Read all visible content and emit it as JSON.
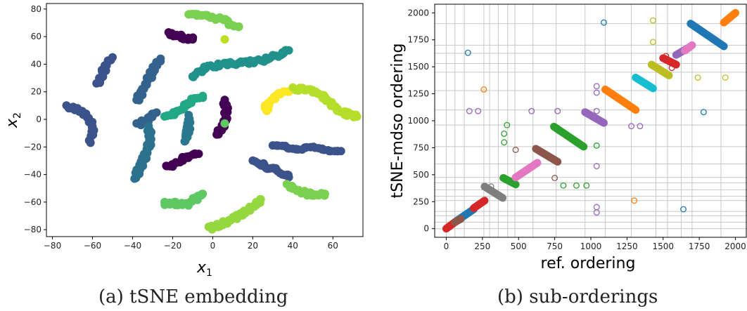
{
  "chart_data": [
    {
      "type": "scatter",
      "caption": "(a) tSNE embedding",
      "xlabel": "x",
      "xlabel_sub": "1",
      "ylabel": "x",
      "ylabel_sub": "2",
      "xlim": [
        -83,
        75
      ],
      "ylim": [
        -85,
        84
      ],
      "xticks": [
        -80,
        -60,
        -40,
        -20,
        0,
        20,
        40,
        60
      ],
      "yticks": [
        -80,
        -60,
        -40,
        -20,
        0,
        20,
        40,
        60,
        80
      ],
      "grid": false,
      "colormap": "viridis",
      "clusters": [
        {
          "points": [
            [
              -73,
              9
            ],
            [
              -68,
              7
            ],
            [
              -64,
              3
            ],
            [
              -61,
              -3
            ],
            [
              -60,
              -9
            ],
            [
              -61,
              -17
            ]
          ],
          "color": "#3b528b"
        },
        {
          "points": [
            [
              -58,
              25
            ],
            [
              -56,
              31
            ],
            [
              -54,
              36
            ],
            [
              -52,
              41
            ],
            [
              -50,
              45
            ]
          ],
          "color": "#3b528b"
        },
        {
          "points": [
            [
              -38,
              -4
            ],
            [
              -33,
              -1
            ],
            [
              -30,
              2
            ],
            [
              -28,
              5
            ]
          ],
          "color": "#33638d"
        },
        {
          "points": [
            [
              -38,
              13
            ],
            [
              -35,
              21
            ],
            [
              -32,
              29
            ],
            [
              -29,
              38
            ],
            [
              -26,
              44
            ]
          ],
          "color": "#33638d"
        },
        {
          "points": [
            [
              -22,
              62
            ],
            [
              -18,
              61
            ],
            [
              -14,
              59
            ],
            [
              -10,
              58
            ]
          ],
          "color": "#440154"
        },
        {
          "points": [
            [
              -32,
              -6
            ],
            [
              -31,
              -15
            ],
            [
              -33,
              -24
            ],
            [
              -36,
              -34
            ],
            [
              -39,
              -43
            ]
          ],
          "color": "#2c728e"
        },
        {
          "points": [
            [
              -24,
              1
            ],
            [
              -19,
              4
            ],
            [
              -14,
              9
            ],
            [
              -10,
              14
            ],
            [
              -5,
              17
            ]
          ],
          "color": "#22a884"
        },
        {
          "points": [
            [
              -12,
              2
            ],
            [
              -12,
              -6
            ],
            [
              -13,
              -12
            ],
            [
              -14,
              -16
            ]
          ],
          "color": "#2a788e"
        },
        {
          "points": [
            [
              -12,
              75
            ],
            [
              -7,
              76
            ],
            [
              -2,
              75
            ],
            [
              3,
              73
            ],
            [
              8,
              70
            ],
            [
              13,
              67
            ]
          ],
          "color": "#7ad151"
        },
        {
          "points": [
            [
              -24,
              -61
            ],
            [
              -18,
              -61
            ],
            [
              -13,
              -62
            ],
            [
              -9,
              -58
            ],
            [
              -5,
              -54
            ]
          ],
          "color": "#5ec962"
        },
        {
          "points": [
            [
              -23,
              -35
            ],
            [
              -18,
              -31
            ],
            [
              -12,
              -27
            ],
            [
              -7,
              -25
            ]
          ],
          "color": "#440154"
        },
        {
          "points": [
            [
              6,
              13
            ],
            [
              7,
              6
            ],
            [
              6,
              -1
            ],
            [
              5,
              -6
            ],
            [
              2,
              -11
            ]
          ],
          "color": "#440154"
        },
        {
          "points": [
            [
              -10,
              30
            ],
            [
              -5,
              37
            ],
            [
              5,
              40
            ],
            [
              15,
              41
            ],
            [
              22,
              42
            ],
            [
              30,
              45
            ],
            [
              38,
              50
            ]
          ],
          "color": "#21918c"
        },
        {
          "points": [
            [
              6,
              -3
            ]
          ],
          "color": "#5ec962"
        },
        {
          "points": [
            [
              6,
              58
            ]
          ],
          "color": "#bddf26"
        },
        {
          "points": [
            [
              20,
              -31
            ],
            [
              25,
              -33
            ],
            [
              32,
              -37
            ],
            [
              38,
              -42
            ]
          ],
          "color": "#3b528b"
        },
        {
          "points": [
            [
              37,
              -48
            ],
            [
              42,
              -51
            ],
            [
              47,
              -54
            ],
            [
              52,
              -55
            ],
            [
              56,
              -54
            ]
          ],
          "color": "#7ad151"
        },
        {
          "points": [
            [
              30,
              -20
            ],
            [
              38,
              -20
            ],
            [
              45,
              -21
            ],
            [
              52,
              -21
            ],
            [
              58,
              -22
            ],
            [
              64,
              -23
            ]
          ],
          "color": "#3b528b"
        },
        {
          "points": [
            [
              -2,
              -79
            ],
            [
              3,
              -77
            ],
            [
              9,
              -73
            ],
            [
              15,
              -68
            ],
            [
              20,
              -64
            ],
            [
              24,
              -58
            ]
          ],
          "color": "#95d840"
        },
        {
          "points": [
            [
              27,
              5
            ],
            [
              27,
              10
            ],
            [
              29,
              14
            ],
            [
              33,
              18
            ],
            [
              38,
              20
            ]
          ],
          "color": "#fde725"
        },
        {
          "points": [
            [
              40,
              22
            ],
            [
              47,
              22
            ],
            [
              54,
              18
            ],
            [
              58,
              13
            ],
            [
              62,
              7
            ],
            [
              67,
              4
            ],
            [
              72,
              2
            ]
          ],
          "color": "#b5de2b"
        }
      ]
    },
    {
      "type": "scatter",
      "caption": "(b) sub-orderings",
      "xlabel": "ref. ordering",
      "ylabel": "tSNE-mdso ordering",
      "xlim": [
        -80,
        2080
      ],
      "ylim": [
        -80,
        2080
      ],
      "xticks": [
        0,
        250,
        500,
        750,
        1000,
        1250,
        1500,
        1750,
        2000
      ],
      "yticks": [
        0,
        250,
        500,
        750,
        1000,
        1250,
        1500,
        1750,
        2000
      ],
      "grid": true,
      "gridlines_x": [
        0,
        60,
        125,
        260,
        300,
        360,
        425,
        475,
        600,
        760,
        960,
        1100,
        1280,
        1450,
        1530,
        1625,
        1700,
        1900
      ],
      "gridlines_y": [
        0,
        60,
        120,
        160,
        260,
        300,
        360,
        425,
        475,
        600,
        760,
        960,
        1100,
        1280,
        1450,
        1530,
        1625,
        1700,
        1900
      ],
      "segments": [
        {
          "x": [
            0,
            75
          ],
          "y": [
            0,
            75
          ],
          "color": "#d62728"
        },
        {
          "x": [
            75,
            190
          ],
          "y": [
            75,
            180
          ],
          "color": "#1f77b4"
        },
        {
          "x": [
            190,
            265
          ],
          "y": [
            190,
            260
          ],
          "color": "#d62728"
        },
        {
          "x": [
            60,
            100
          ],
          "y": [
            60,
            90
          ],
          "color": "#8c564b"
        },
        {
          "x": [
            265,
            390
          ],
          "y": [
            390,
            285
          ],
          "color": "#7f7f7f"
        },
        {
          "x": [
            395,
            480
          ],
          "y": [
            470,
            410
          ],
          "color": "#2ca02c"
        },
        {
          "x": [
            480,
            630
          ],
          "y": [
            475,
            610
          ],
          "color": "#e377c2"
        },
        {
          "x": [
            620,
            770
          ],
          "y": [
            740,
            620
          ],
          "color": "#8c564b"
        },
        {
          "x": [
            745,
            950
          ],
          "y": [
            945,
            760
          ],
          "color": "#2ca02c"
        },
        {
          "x": [
            960,
            1090
          ],
          "y": [
            1080,
            980
          ],
          "color": "#9467bd"
        },
        {
          "x": [
            1100,
            1310
          ],
          "y": [
            1290,
            1100
          ],
          "color": "#ff7f0e"
        },
        {
          "x": [
            1310,
            1430
          ],
          "y": [
            1400,
            1300
          ],
          "color": "#17becf"
        },
        {
          "x": [
            1420,
            1540
          ],
          "y": [
            1520,
            1420
          ],
          "color": "#bcbd22"
        },
        {
          "x": [
            1500,
            1590
          ],
          "y": [
            1580,
            1520
          ],
          "color": "#d62728"
        },
        {
          "x": [
            1590,
            1680
          ],
          "y": [
            1610,
            1680
          ],
          "color": "#9467bd"
        },
        {
          "x": [
            1650,
            1700
          ],
          "y": [
            1650,
            1700
          ],
          "color": "#e377c2"
        },
        {
          "x": [
            1690,
            1920
          ],
          "y": [
            1900,
            1690
          ],
          "color": "#1f77b4"
        },
        {
          "x": [
            1920,
            2000
          ],
          "y": [
            1910,
            2000
          ],
          "color": "#ff7f0e"
        }
      ],
      "outliers": [
        {
          "x": 150,
          "y": 1630,
          "color": "#1f77b4"
        },
        {
          "x": 1090,
          "y": 1910,
          "color": "#1f77b4"
        },
        {
          "x": 1430,
          "y": 1930,
          "color": "#bcbd22"
        },
        {
          "x": 1430,
          "y": 1730,
          "color": "#bcbd22"
        },
        {
          "x": 1520,
          "y": 1600,
          "color": "#d62728"
        },
        {
          "x": 1560,
          "y": 1490,
          "color": "#d62728"
        },
        {
          "x": 1740,
          "y": 1400,
          "color": "#bcbd22"
        },
        {
          "x": 1930,
          "y": 1400,
          "color": "#bcbd22"
        },
        {
          "x": 1040,
          "y": 1320,
          "color": "#9467bd"
        },
        {
          "x": 1040,
          "y": 1260,
          "color": "#9467bd"
        },
        {
          "x": 1040,
          "y": 1090,
          "color": "#9467bd"
        },
        {
          "x": 1780,
          "y": 1080,
          "color": "#1f77b4"
        },
        {
          "x": 260,
          "y": 1290,
          "color": "#ff7f0e"
        },
        {
          "x": 160,
          "y": 1090,
          "color": "#9467bd"
        },
        {
          "x": 220,
          "y": 1090,
          "color": "#9467bd"
        },
        {
          "x": 590,
          "y": 1090,
          "color": "#9467bd"
        },
        {
          "x": 770,
          "y": 1090,
          "color": "#9467bd"
        },
        {
          "x": 1280,
          "y": 950,
          "color": "#9467bd"
        },
        {
          "x": 1340,
          "y": 950,
          "color": "#9467bd"
        },
        {
          "x": 420,
          "y": 960,
          "color": "#2ca02c"
        },
        {
          "x": 400,
          "y": 880,
          "color": "#2ca02c"
        },
        {
          "x": 400,
          "y": 800,
          "color": "#2ca02c"
        },
        {
          "x": 1040,
          "y": 770,
          "color": "#2ca02c"
        },
        {
          "x": 480,
          "y": 730,
          "color": "#8c564b"
        },
        {
          "x": 1040,
          "y": 580,
          "color": "#9467bd"
        },
        {
          "x": 750,
          "y": 470,
          "color": "#8c564b"
        },
        {
          "x": 810,
          "y": 400,
          "color": "#2ca02c"
        },
        {
          "x": 900,
          "y": 400,
          "color": "#2ca02c"
        },
        {
          "x": 970,
          "y": 400,
          "color": "#2ca02c"
        },
        {
          "x": 310,
          "y": 390,
          "color": "#7f7f7f"
        },
        {
          "x": 1040,
          "y": 200,
          "color": "#9467bd"
        },
        {
          "x": 1040,
          "y": 150,
          "color": "#9467bd"
        },
        {
          "x": 1300,
          "y": 260,
          "color": "#ff7f0e"
        },
        {
          "x": 1640,
          "y": 180,
          "color": "#1f77b4"
        }
      ]
    }
  ]
}
